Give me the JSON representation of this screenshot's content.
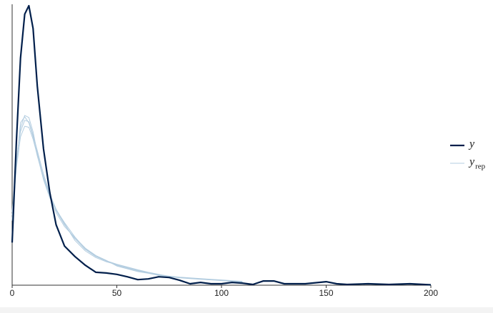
{
  "chart_data": {
    "type": "line",
    "x": [
      0,
      2,
      4,
      6,
      8,
      10,
      12,
      15,
      18,
      21,
      25,
      30,
      35,
      40,
      45,
      50,
      55,
      60,
      65,
      70,
      75,
      80,
      85,
      90,
      95,
      100,
      105,
      110,
      115,
      120,
      125,
      130,
      140,
      150,
      155,
      160,
      170,
      180,
      190,
      200
    ],
    "series": [
      {
        "name": "y",
        "color": "#011f4b",
        "width": 2.2,
        "values": [
          0.0122,
          0.041,
          0.065,
          0.0776,
          0.08,
          0.0735,
          0.057,
          0.039,
          0.0265,
          0.0173,
          0.0112,
          0.0082,
          0.0057,
          0.0037,
          0.0035,
          0.0031,
          0.0024,
          0.0016,
          0.0018,
          0.0024,
          0.0022,
          0.0014,
          0.0004,
          0.0008,
          0.0004,
          0.0004,
          0.0008,
          0.0006,
          0.0002,
          0.0012,
          0.0012,
          0.0004,
          0.0004,
          0.001,
          0.0004,
          0.0002,
          0.0004,
          0.0002,
          0.0004,
          0.0001
        ]
      },
      {
        "name": "y",
        "subscript": "rep",
        "color": "#b3cde0",
        "width": 1,
        "draws": [
          [
            0.02,
            0.035,
            0.045,
            0.0486,
            0.048,
            0.0439,
            0.0378,
            0.0306,
            0.0255,
            0.0214,
            0.0173,
            0.0133,
            0.0102,
            0.0082,
            0.0069,
            0.0057,
            0.0049,
            0.0041,
            0.0035,
            0.0029,
            0.0024,
            0.0022,
            0.002,
            0.0018,
            0.0016,
            0.0014,
            0.0012,
            0.001,
            null,
            null,
            null,
            null,
            null,
            null,
            null,
            null,
            null,
            null,
            null,
            null
          ],
          [
            0.019,
            0.034,
            0.0465,
            0.0482,
            0.0465,
            0.0425,
            0.037,
            0.031,
            0.026,
            0.0218,
            0.0176,
            0.0128,
            0.0098,
            0.0079,
            0.0067,
            0.0059,
            0.0051,
            0.0043,
            0.0036,
            0.003,
            0.0026,
            0.0023,
            0.0021,
            0.0019,
            0.0017,
            0.0015,
            0.0013,
            0.0011,
            null,
            null,
            null,
            null,
            null,
            null,
            null,
            null,
            null,
            null,
            null,
            null
          ],
          [
            0.021,
            0.036,
            0.044,
            0.0472,
            0.0468,
            0.043,
            0.0385,
            0.0318,
            0.0262,
            0.0208,
            0.0168,
            0.0136,
            0.0106,
            0.0085,
            0.0071,
            0.0055,
            0.0047,
            0.0039,
            0.0034,
            0.0028,
            0.0025,
            0.0021,
            0.0019,
            0.0017,
            0.0015,
            0.0013,
            0.0011,
            0.0009,
            null,
            null,
            null,
            null,
            null,
            null,
            null,
            null,
            null,
            null,
            null,
            null
          ],
          [
            0.0185,
            0.0335,
            0.0425,
            0.0455,
            0.0452,
            0.0418,
            0.0372,
            0.0302,
            0.025,
            0.0216,
            0.0179,
            0.0138,
            0.0104,
            0.0083,
            0.007,
            0.006,
            0.0052,
            0.0044,
            0.0037,
            0.0031,
            0.0025,
            0.0022,
            0.002,
            0.0018,
            0.0016,
            0.0014,
            0.0012,
            0.001,
            null,
            null,
            null,
            null,
            null,
            null,
            null,
            null,
            null,
            null,
            null,
            null
          ]
        ]
      }
    ],
    "xlim": [
      0,
      200
    ],
    "xticks": [
      0,
      50,
      100,
      150,
      200
    ],
    "ylim": [
      0,
      0.08
    ]
  }
}
